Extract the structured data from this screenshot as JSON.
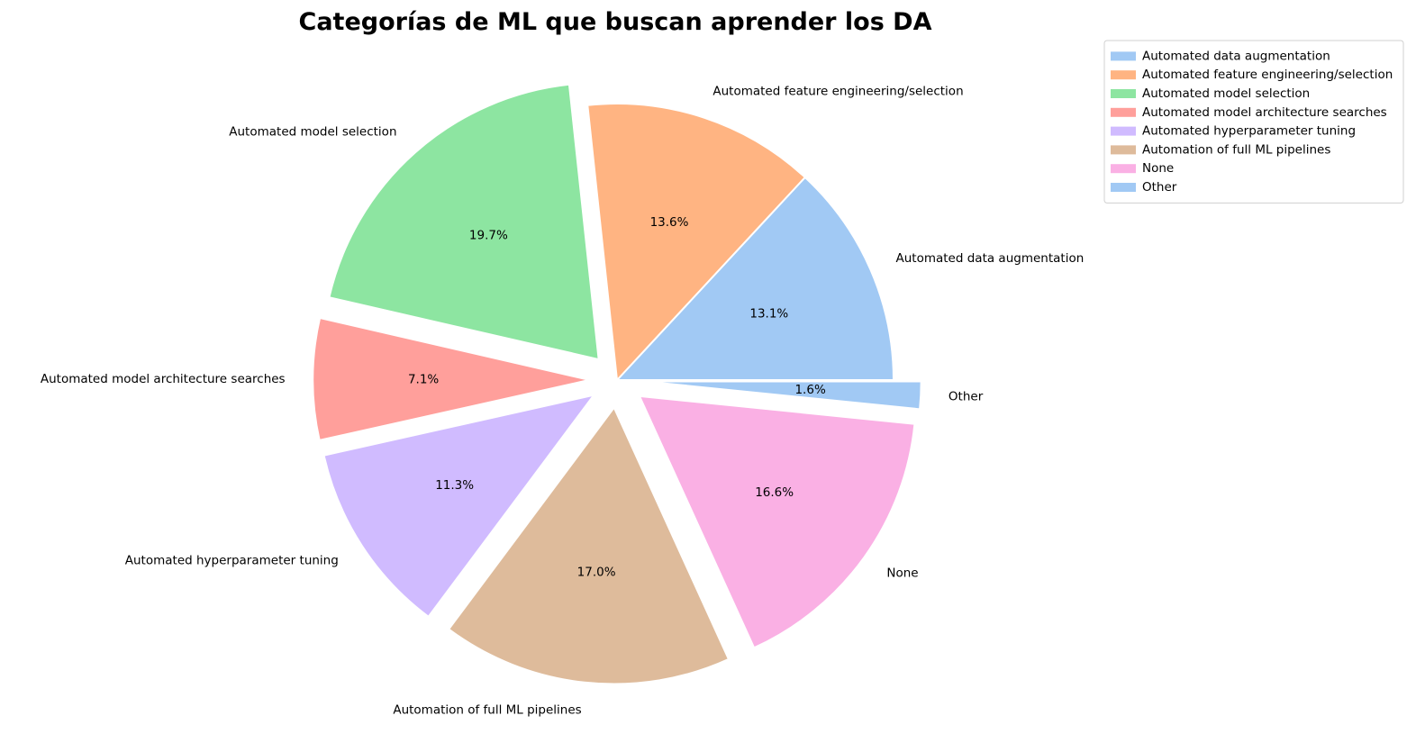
{
  "chart_data": {
    "type": "pie",
    "title": "Categorías de ML que buscan aprender los DA",
    "start_angle_deg": 0,
    "direction": "counterclockwise",
    "slices": [
      {
        "label": "Automated data augmentation",
        "value": 13.1,
        "pct_label": "13.1%",
        "color": "#a1c9f4",
        "exploded": false
      },
      {
        "label": "Automated feature engineering/selection",
        "value": 13.6,
        "pct_label": "13.6%",
        "color": "#ffb482",
        "exploded": false
      },
      {
        "label": "Automated model selection",
        "value": 19.7,
        "pct_label": "19.7%",
        "color": "#8de5a1",
        "exploded": true
      },
      {
        "label": "Automated model architecture searches",
        "value": 7.1,
        "pct_label": "7.1%",
        "color": "#ff9f9b",
        "exploded": true
      },
      {
        "label": "Automated hyperparameter tuning",
        "value": 11.3,
        "pct_label": "11.3%",
        "color": "#d0bbff",
        "exploded": true
      },
      {
        "label": "Automation of full ML pipelines",
        "value": 17.0,
        "pct_label": "17.0%",
        "color": "#debb9b",
        "exploded": true
      },
      {
        "label": "None",
        "value": 16.6,
        "pct_label": "16.6%",
        "color": "#fab0e4",
        "exploded": true
      },
      {
        "label": "Other",
        "value": 1.6,
        "pct_label": "1.6%",
        "color": "#a1c9f4",
        "exploded": true
      }
    ],
    "legend": {
      "placement": "top-right",
      "entries": [
        "Automated data augmentation",
        "Automated feature engineering/selection",
        "Automated model selection",
        "Automated model architecture searches",
        "Automated hyperparameter tuning",
        "Automation of full ML pipelines",
        "None",
        "Other"
      ]
    }
  }
}
